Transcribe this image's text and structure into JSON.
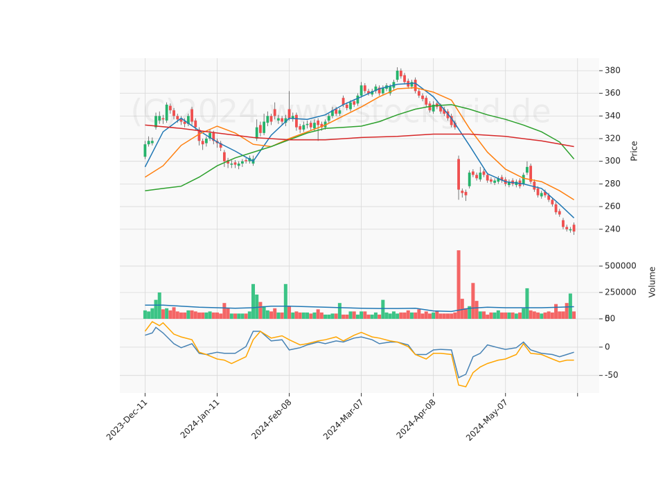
{
  "chart_data": [
    {
      "type": "candlestick",
      "watermark": "(C)2024 www.stockgrid.de",
      "ylabel": "Price",
      "up_color": "#26b36b",
      "down_color": "#ef4f4f",
      "grid": true,
      "xlim": [
        -7,
        126
      ],
      "ylim": [
        227,
        391
      ],
      "yticks": [
        240,
        260,
        280,
        300,
        320,
        340,
        360,
        380
      ],
      "open": [
        304,
        315,
        316,
        330,
        336,
        338,
        336,
        349,
        345,
        340,
        337,
        335,
        333,
        346,
        336,
        328,
        318,
        316,
        320,
        325,
        318,
        316,
        308,
        301,
        297,
        299,
        296,
        298,
        301,
        300,
        298,
        320,
        332,
        325,
        334,
        340,
        346,
        336,
        338,
        334,
        346,
        338,
        341,
        331,
        328,
        332,
        334,
        329,
        336,
        333,
        330,
        336,
        340,
        346,
        342,
        356,
        350,
        346,
        353,
        351,
        358,
        367,
        362,
        359,
        362,
        365,
        360,
        364,
        360,
        365,
        372,
        380,
        376,
        371,
        366,
        372,
        362,
        358,
        356,
        351,
        344,
        351,
        349,
        346,
        344,
        340,
        334,
        302,
        274,
        273,
        278,
        291,
        288,
        284,
        291,
        288,
        284,
        281,
        282,
        286,
        284,
        279,
        283,
        279,
        283,
        280,
        290,
        296,
        282,
        276,
        269,
        273,
        270,
        266,
        262,
        256,
        248,
        242,
        239,
        244
      ],
      "high": [
        318,
        322,
        321,
        343,
        344,
        341,
        352,
        351,
        347,
        342,
        340,
        338,
        342,
        348,
        338,
        330,
        320,
        322,
        328,
        327,
        320,
        318,
        310,
        303,
        301,
        301,
        300,
        302,
        303,
        305,
        305,
        337,
        335,
        342,
        344,
        342,
        352,
        341,
        340,
        341,
        362,
        343,
        343,
        333,
        335,
        336,
        336,
        337,
        338,
        335,
        337,
        342,
        348,
        348,
        347,
        358,
        352,
        354,
        355,
        360,
        370,
        369,
        364,
        364,
        368,
        367,
        367,
        369,
        368,
        372,
        383,
        382,
        378,
        373,
        372,
        374,
        364,
        360,
        358,
        353,
        353,
        354,
        351,
        348,
        346,
        342,
        336,
        305,
        276,
        275,
        292,
        293,
        290,
        295,
        293,
        290,
        286,
        285,
        287,
        288,
        286,
        284,
        285,
        284,
        285,
        290,
        300,
        298,
        284,
        278,
        274,
        275,
        272,
        268,
        264,
        258,
        250,
        244,
        242,
        246
      ],
      "low": [
        302,
        313,
        314,
        328,
        333,
        333,
        334,
        342,
        337,
        334,
        332,
        330,
        331,
        332,
        327,
        314,
        310,
        313,
        318,
        315,
        312,
        309,
        295,
        294,
        294,
        294,
        293,
        295,
        298,
        298,
        296,
        318,
        322,
        323,
        331,
        332,
        337,
        333,
        332,
        331,
        336,
        335,
        327,
        325,
        326,
        329,
        327,
        327,
        318,
        327,
        328,
        334,
        338,
        340,
        340,
        348,
        345,
        344,
        348,
        349,
        356,
        360,
        358,
        357,
        360,
        358,
        358,
        362,
        358,
        363,
        370,
        373,
        368,
        364,
        364,
        360,
        356,
        353,
        348,
        343,
        342,
        346,
        342,
        340,
        336,
        330,
        328,
        266,
        268,
        265,
        276,
        286,
        283,
        282,
        286,
        281,
        280,
        279,
        280,
        281,
        278,
        277,
        278,
        277,
        276,
        278,
        288,
        280,
        273,
        268,
        267,
        268,
        264,
        260,
        253,
        251,
        240,
        238,
        237,
        235
      ],
      "close": [
        315,
        318,
        318,
        340,
        340,
        337,
        350,
        345,
        340,
        337,
        335,
        333,
        340,
        335,
        330,
        318,
        315,
        320,
        325,
        318,
        316,
        312,
        300,
        298,
        298,
        297,
        298,
        300,
        300,
        303,
        302,
        330,
        325,
        335,
        340,
        335,
        340,
        338,
        335,
        338,
        338,
        340,
        330,
        328,
        332,
        333,
        330,
        334,
        332,
        330,
        335,
        340,
        345,
        342,
        345,
        350,
        347,
        352,
        350,
        358,
        367,
        362,
        360,
        362,
        366,
        360,
        365,
        367,
        366,
        370,
        380,
        375,
        370,
        366,
        370,
        362,
        358,
        355,
        350,
        345,
        350,
        348,
        344,
        342,
        338,
        332,
        330,
        275,
        272,
        270,
        290,
        288,
        285,
        290,
        288,
        283,
        282,
        283,
        285,
        283,
        280,
        282,
        280,
        282,
        278,
        288,
        295,
        282,
        275,
        270,
        272,
        270,
        266,
        262,
        255,
        253,
        242,
        240,
        240,
        238
      ],
      "series": [
        {
          "color": "#1f77b4",
          "x": [
            0,
            5,
            10,
            15,
            20,
            25,
            30,
            35,
            40,
            45,
            50,
            55,
            60,
            65,
            70,
            75,
            80,
            85,
            90,
            95,
            100,
            105,
            110,
            115,
            119
          ],
          "values": [
            295,
            326,
            338,
            327,
            317,
            309,
            300,
            323,
            338,
            337,
            341,
            350,
            357,
            364,
            368,
            369,
            357,
            338,
            314,
            289,
            282,
            280,
            276,
            262,
            250
          ]
        },
        {
          "color": "#ff7f0e",
          "x": [
            0,
            5,
            10,
            15,
            20,
            25,
            30,
            35,
            40,
            45,
            50,
            55,
            60,
            65,
            70,
            75,
            80,
            85,
            90,
            95,
            100,
            105,
            110,
            115,
            119
          ],
          "values": [
            286,
            296,
            314,
            324,
            331,
            325,
            315,
            313,
            320,
            326,
            332,
            340,
            348,
            357,
            364,
            365,
            361,
            354,
            329,
            308,
            293,
            285,
            282,
            274,
            266
          ]
        },
        {
          "color": "#2ca02c",
          "x": [
            0,
            5,
            10,
            15,
            20,
            25,
            30,
            35,
            40,
            45,
            50,
            55,
            60,
            65,
            70,
            75,
            80,
            85,
            90,
            95,
            100,
            105,
            110,
            115,
            119
          ],
          "values": [
            274,
            276,
            278,
            286,
            296,
            303,
            308,
            313,
            319,
            325,
            329,
            330,
            331,
            335,
            341,
            346,
            349,
            350,
            346,
            341,
            337,
            332,
            326,
            317,
            302
          ]
        },
        {
          "color": "#d62728",
          "x": [
            0,
            10,
            20,
            30,
            40,
            50,
            60,
            70,
            80,
            85,
            90,
            100,
            110,
            119
          ],
          "values": [
            332,
            329,
            325,
            321,
            319,
            319,
            321,
            322,
            324,
            324,
            324,
            322,
            318,
            313
          ]
        }
      ]
    },
    {
      "type": "bar",
      "ylabel": "Volume",
      "up_color": "#3cc486",
      "down_color": "#f46565",
      "grid": true,
      "xlim": [
        -7,
        126
      ],
      "ylim": [
        0,
        710000
      ],
      "yticks": [
        0,
        250000,
        500000
      ],
      "values": [
        80000,
        70000,
        100000,
        180000,
        250000,
        90000,
        100000,
        80000,
        110000,
        70000,
        60000,
        60000,
        80000,
        80000,
        70000,
        60000,
        60000,
        60000,
        70000,
        60000,
        60000,
        50000,
        150000,
        100000,
        50000,
        50000,
        50000,
        50000,
        50000,
        70000,
        330000,
        230000,
        160000,
        120000,
        80000,
        70000,
        100000,
        60000,
        60000,
        330000,
        120000,
        60000,
        70000,
        60000,
        60000,
        60000,
        50000,
        60000,
        90000,
        60000,
        40000,
        40000,
        50000,
        50000,
        150000,
        40000,
        40000,
        70000,
        70000,
        40000,
        70000,
        70000,
        40000,
        40000,
        60000,
        40000,
        180000,
        60000,
        50000,
        70000,
        50000,
        60000,
        60000,
        80000,
        60000,
        60000,
        90000,
        50000,
        70000,
        50000,
        60000,
        70000,
        50000,
        50000,
        50000,
        50000,
        60000,
        650000,
        190000,
        100000,
        120000,
        340000,
        170000,
        70000,
        70000,
        40000,
        60000,
        60000,
        80000,
        60000,
        60000,
        60000,
        60000,
        50000,
        60000,
        100000,
        290000,
        80000,
        70000,
        60000,
        50000,
        60000,
        70000,
        60000,
        140000,
        70000,
        70000,
        150000,
        240000,
        70000
      ],
      "series": [
        {
          "color": "#1f77b4",
          "x": [
            0,
            5,
            10,
            15,
            20,
            25,
            30,
            35,
            40,
            45,
            50,
            55,
            60,
            65,
            70,
            75,
            80,
            85,
            90,
            95,
            100,
            105,
            110,
            115,
            119
          ],
          "values": [
            130000,
            130000,
            120000,
            110000,
            105000,
            100000,
            105000,
            120000,
            120000,
            115000,
            110000,
            105000,
            100000,
            98000,
            98000,
            100000,
            75000,
            70000,
            100000,
            110000,
            105000,
            105000,
            105000,
            110000,
            115000
          ]
        }
      ]
    },
    {
      "type": "line",
      "grid": true,
      "xlim": [
        -7,
        126
      ],
      "ylim": [
        -81,
        50
      ],
      "yticks": [
        -50,
        0,
        50
      ],
      "xticks": [
        {
          "value": 0,
          "label": "2023-Dec-11"
        },
        {
          "value": 20,
          "label": "2024-Jan-11"
        },
        {
          "value": 40,
          "label": "2024-Feb-08"
        },
        {
          "value": 60,
          "label": "2024-Mar-07"
        },
        {
          "value": 80,
          "label": "2024-Apr-08"
        },
        {
          "value": 100,
          "label": "2024-May-07"
        },
        {
          "value": 120,
          "label": null
        }
      ],
      "series": [
        {
          "color": "#4682b4",
          "x": [
            0,
            2,
            3,
            5,
            8,
            10,
            13,
            15,
            17,
            20,
            22,
            25,
            28,
            30,
            32,
            35,
            38,
            40,
            43,
            45,
            48,
            50,
            53,
            55,
            58,
            60,
            63,
            65,
            68,
            70,
            73,
            75,
            78,
            80,
            82,
            85,
            87,
            89,
            91,
            93,
            95,
            98,
            100,
            103,
            105,
            107,
            110,
            113,
            115,
            117,
            119
          ],
          "values": [
            21,
            25,
            35,
            25,
            6,
            -1,
            6,
            -11,
            -13,
            -9,
            -11,
            -11,
            1,
            28,
            28,
            11,
            13,
            -5,
            -1,
            4,
            9,
            6,
            11,
            9,
            16,
            18,
            13,
            6,
            9,
            9,
            4,
            -13,
            -13,
            -5,
            -4,
            -5,
            -54,
            -48,
            -17,
            -11,
            4,
            -1,
            -4,
            -1,
            9,
            -5,
            -11,
            -13,
            -17,
            -13,
            -9
          ]
        },
        {
          "color": "#ffa500",
          "x": [
            0,
            2,
            4,
            5,
            8,
            10,
            13,
            15,
            17,
            20,
            22,
            24,
            25,
            28,
            30,
            32,
            35,
            38,
            40,
            43,
            45,
            48,
            50,
            53,
            55,
            58,
            60,
            63,
            65,
            68,
            70,
            73,
            75,
            78,
            80,
            82,
            85,
            87,
            89,
            91,
            93,
            95,
            98,
            100,
            103,
            105,
            107,
            110,
            113,
            115,
            117,
            119
          ],
          "values": [
            28,
            45,
            38,
            43,
            23,
            18,
            13,
            -9,
            -13,
            -21,
            -23,
            -29,
            -26,
            -17,
            13,
            28,
            16,
            20,
            13,
            4,
            6,
            11,
            13,
            18,
            11,
            21,
            26,
            18,
            16,
            11,
            9,
            1,
            -13,
            -21,
            -11,
            -11,
            -13,
            -67,
            -70,
            -45,
            -35,
            -29,
            -23,
            -21,
            -13,
            6,
            -11,
            -13,
            -21,
            -26,
            -23,
            -23
          ]
        }
      ]
    }
  ]
}
